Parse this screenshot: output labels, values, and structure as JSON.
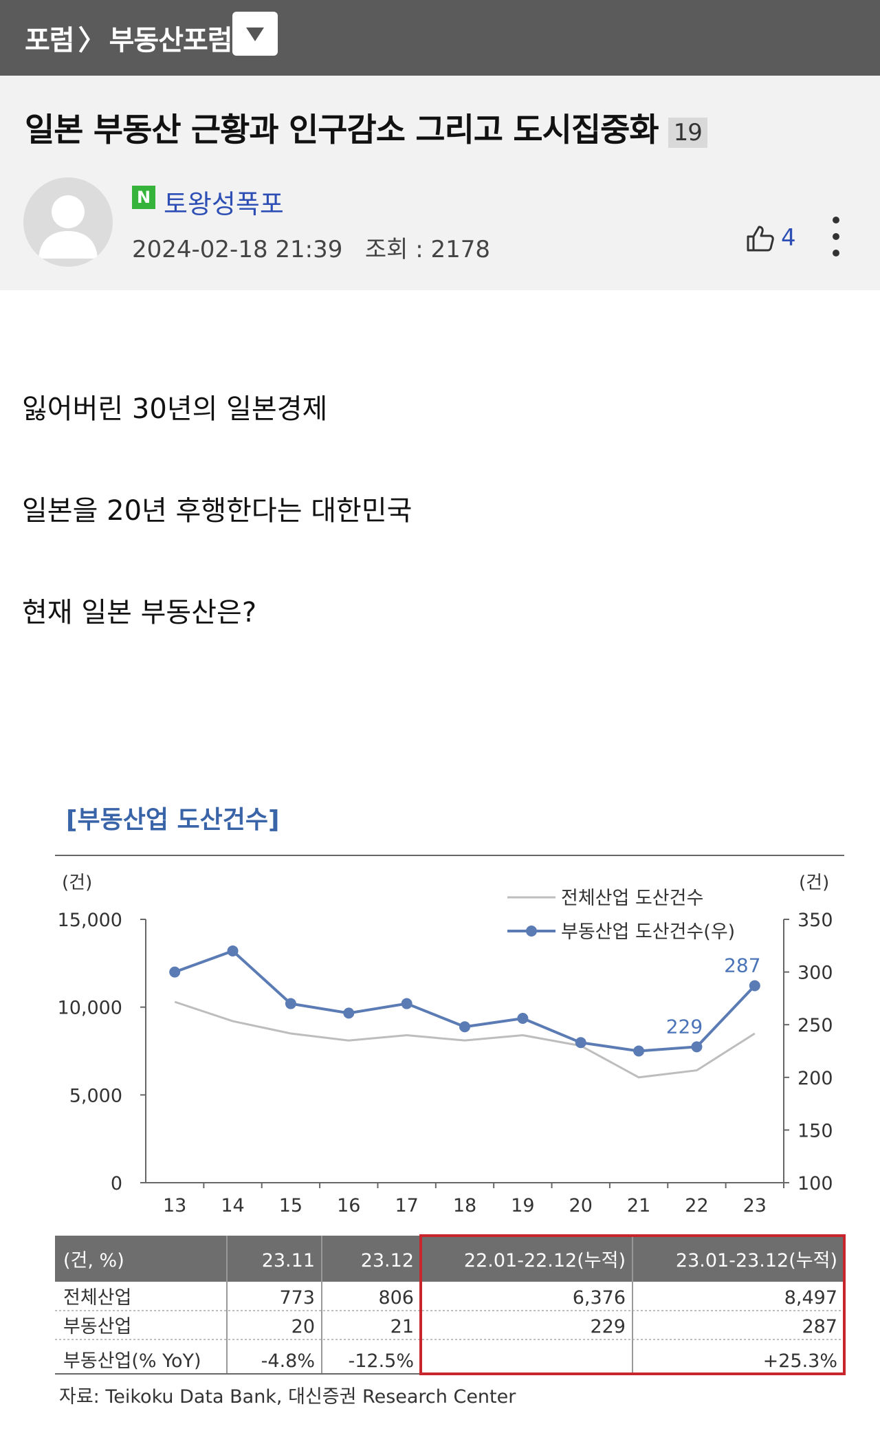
{
  "breadcrumb": {
    "forum": "포럼",
    "separator": "〉",
    "board": "부동산포럼"
  },
  "post": {
    "title": "일본 부동산 근황과 인구감소 그리고 도시집중화",
    "comment_count": "19",
    "author_badge": "N",
    "author": "토왕성폭포",
    "datetime": "2024-02-18 21:39",
    "views": "조회 : 2178",
    "likes": "4",
    "paragraphs": [
      "잃어버린 30년의 일본경제",
      "일본을 20년 후행한다는 대한민국",
      "현재 일본 부동산은?"
    ]
  },
  "colors": {
    "topbar": "#5b5b5b",
    "header_bg": "#f2f2f2",
    "accent_blue": "#2d4fb5",
    "series_blue": "#5b7bb5",
    "series_gray": "#bdbdbd",
    "highlight_red": "#c8262c",
    "table_header": "#6e6e6e"
  },
  "icons": {
    "dropdown": "triangle-down-icon",
    "like": "thumbs-up-icon",
    "more": "vertical-dots-icon"
  },
  "chart_data": {
    "type": "line",
    "title": "[부동산업 도산건수]",
    "y_left_unit": "(건)",
    "y_right_unit": "(건)",
    "categories": [
      "13",
      "14",
      "15",
      "16",
      "17",
      "18",
      "19",
      "20",
      "21",
      "22",
      "23"
    ],
    "y_left_ticks": [
      "15,000",
      "10,000",
      "5,000",
      "0"
    ],
    "y_right_ticks": [
      "350",
      "300",
      "250",
      "200",
      "150",
      "100"
    ],
    "ylim_left": [
      0,
      15000
    ],
    "ylim_right": [
      100,
      350
    ],
    "series": [
      {
        "name": "전체산업 도산건수",
        "axis": "left",
        "values": [
          10300,
          9200,
          8500,
          8100,
          8400,
          8100,
          8400,
          7800,
          6000,
          6400,
          8500
        ]
      },
      {
        "name": "부동산업 도산건수(우)",
        "axis": "right",
        "values": [
          300,
          320,
          270,
          261,
          270,
          248,
          256,
          233,
          225,
          229,
          287
        ]
      }
    ],
    "annotations": [
      {
        "category": "22",
        "label": "229"
      },
      {
        "category": "23",
        "label": "287"
      }
    ],
    "table": {
      "header": [
        "(건, %)",
        "23.11",
        "23.12",
        "22.01-22.12(누적)",
        "23.01-23.12(누적)"
      ],
      "rows": [
        [
          "전체산업",
          "773",
          "806",
          "6,376",
          "8,497"
        ],
        [
          "부동산업",
          "20",
          "21",
          "229",
          "287"
        ],
        [
          "부동산업(% YoY)",
          "-4.8%",
          "-12.5%",
          "",
          "+25.3%"
        ]
      ]
    },
    "source": "자료: Teikoku Data Bank, 대신증권 Research Center"
  }
}
